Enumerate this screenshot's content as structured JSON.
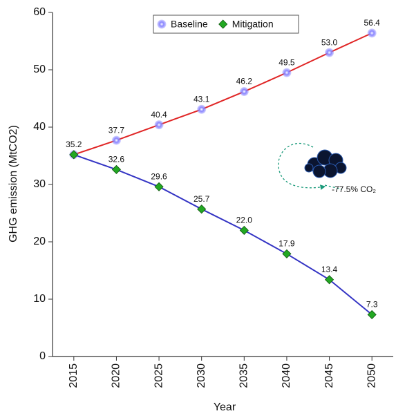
{
  "chart_data": {
    "type": "line",
    "x": [
      2015,
      2020,
      2025,
      2030,
      2035,
      2040,
      2045,
      2050
    ],
    "series": [
      {
        "name": "Baseline",
        "color": "#e02525",
        "marker_color": "#7f7cf5",
        "marker": "circle",
        "values": [
          35.2,
          37.7,
          40.4,
          43.1,
          46.2,
          49.5,
          53.0,
          56.4
        ],
        "value_labels": [
          "35.2",
          "37.7",
          "40.4",
          "43.1",
          "46.2",
          "49.5",
          "53.0",
          "56.4"
        ]
      },
      {
        "name": "Mitigation",
        "color": "#3434c4",
        "marker_color": "#22a822",
        "marker": "diamond",
        "values": [
          35.2,
          32.6,
          29.6,
          25.7,
          22.0,
          17.9,
          13.4,
          7.3
        ],
        "value_labels": [
          null,
          "32.6",
          "29.6",
          "25.7",
          "22.0",
          "17.9",
          "13.4",
          "7.3"
        ]
      }
    ],
    "xlabel": "Year",
    "ylabel": "GHG emission (MtCO2)",
    "xlim": [
      2012.5,
      2052.5
    ],
    "ylim": [
      0,
      60
    ],
    "xticks": [
      2015,
      2020,
      2025,
      2030,
      2035,
      2040,
      2045,
      2050
    ],
    "yticks": [
      0,
      10,
      20,
      30,
      40,
      50,
      60
    ],
    "annotation": "-77.5% CO₂",
    "legend": "top-center",
    "grid": false
  }
}
